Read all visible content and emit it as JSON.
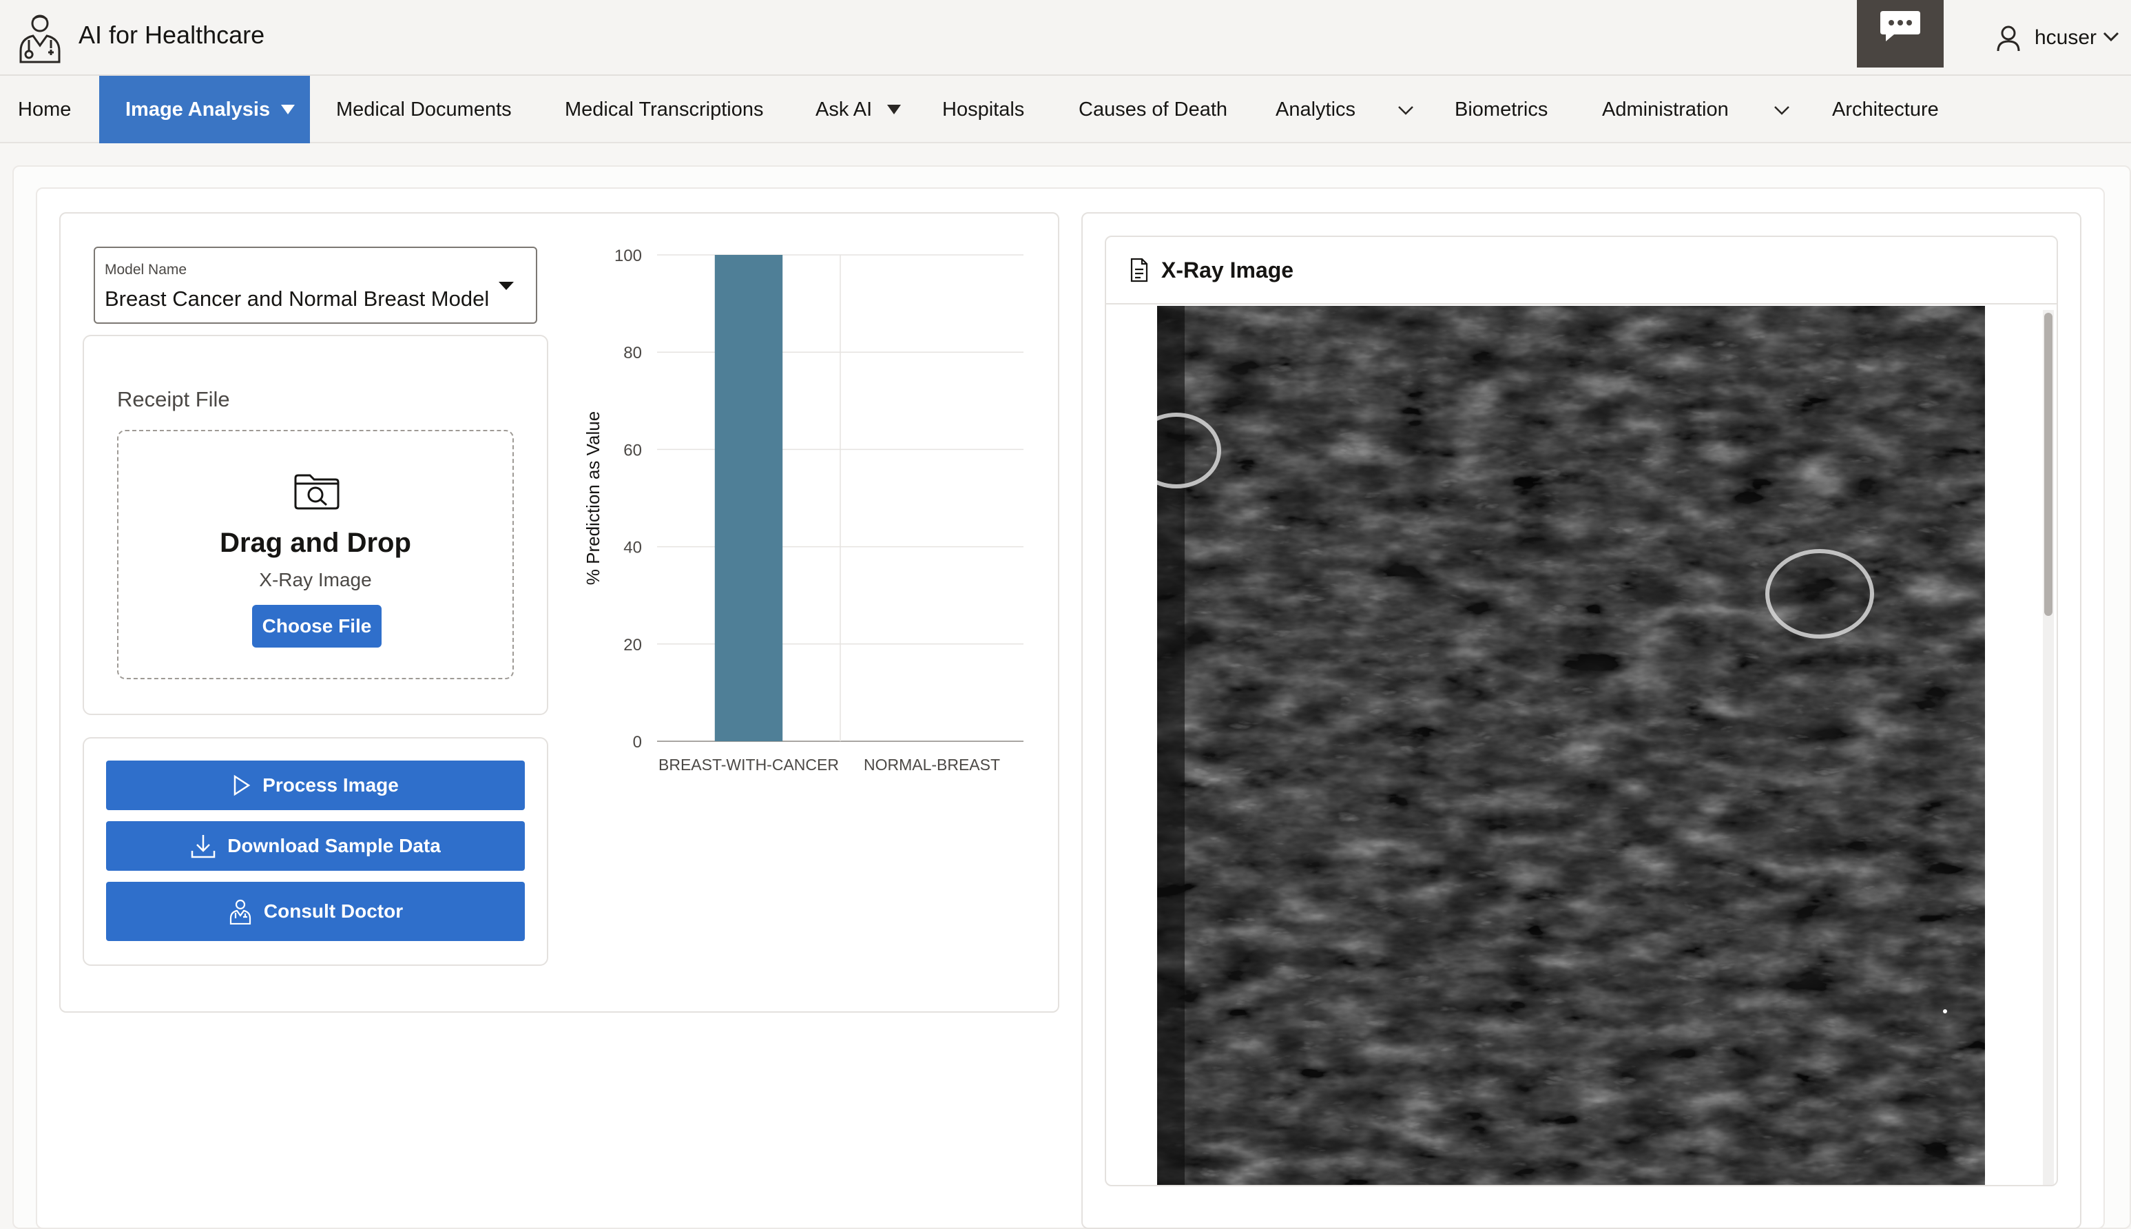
{
  "app": {
    "title": "AI for Healthcare"
  },
  "user": {
    "name": "hcuser"
  },
  "nav": {
    "items": [
      {
        "label": "Home"
      },
      {
        "label": "Image Analysis"
      },
      {
        "label": "Medical Documents"
      },
      {
        "label": "Medical Transcriptions"
      },
      {
        "label": "Ask AI"
      },
      {
        "label": "Hospitals"
      },
      {
        "label": "Causes of Death"
      },
      {
        "label": "Analytics"
      },
      {
        "label": "Biometrics"
      },
      {
        "label": "Administration"
      },
      {
        "label": "Architecture"
      }
    ]
  },
  "model_select": {
    "label": "Model Name",
    "value": "Breast Cancer and Normal Breast Model"
  },
  "receipt": {
    "title": "Receipt File",
    "drop_title": "Drag and Drop",
    "drop_subtitle": "X-Ray Image",
    "choose_label": "Choose File"
  },
  "actions": {
    "process": "Process Image",
    "download": "Download Sample Data",
    "consult": "Consult Doctor"
  },
  "xray": {
    "title": "X-Ray Image"
  },
  "colors": {
    "accent": "#2f6fcb",
    "nav_active": "#3a75c4",
    "bar": "#4f7f97",
    "chat_btn": "#4a4541"
  },
  "icons": {
    "logo": "doctor-icon",
    "chat": "chat-bubble-icon",
    "user": "user-icon",
    "folder": "folder-search-icon",
    "process": "play-icon",
    "download": "download-icon",
    "consult": "doctor-icon",
    "xray": "document-icon"
  },
  "chart_data": {
    "type": "bar",
    "categories": [
      "BREAST-WITH-CANCER",
      "NORMAL-BREAST"
    ],
    "values": [
      100,
      0
    ],
    "ylabel": "% Prediction as Value",
    "xlabel": "",
    "ylim": [
      0,
      100
    ],
    "yticks": [
      0,
      20,
      40,
      60,
      80,
      100
    ],
    "grid": true
  }
}
